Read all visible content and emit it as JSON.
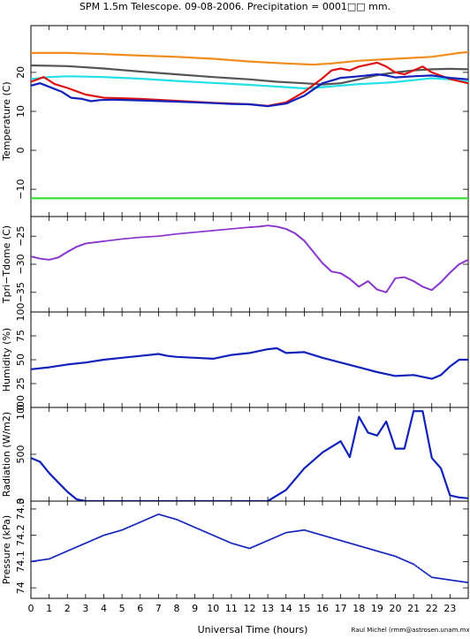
{
  "title": "SPM 1.5m Telescope. 09-08-2006. Precipitation = 0001□□ mm.",
  "credit": "Raul Michel (rmm@astrosen.unam.mx)",
  "xlabel": "Universal Time (hours)",
  "x_ticks": [
    0,
    1,
    2,
    3,
    4,
    5,
    6,
    7,
    8,
    9,
    10,
    11,
    12,
    13,
    14,
    15,
    16,
    17,
    18,
    19,
    20,
    21,
    22,
    23
  ],
  "x_tick_labels": [
    "0",
    "1",
    "2",
    "3",
    "4",
    "5",
    "6",
    "7",
    "8",
    "9",
    "10",
    "11",
    "12",
    "13",
    "14",
    "15",
    "16",
    "17",
    "18",
    "19",
    "20",
    "21",
    "22",
    "23"
  ],
  "colors": {
    "orange": "#f08c1e",
    "gray": "#555555",
    "cyan": "#22e0e8",
    "red": "#dd1111",
    "blue": "#1122bb",
    "green": "#33dd33",
    "purple": "#8833cc"
  },
  "chart_data": [
    {
      "type": "line",
      "ylabel": "Temperature (C)",
      "xlim": [
        0,
        24
      ],
      "ylim": [
        -17,
        32
      ],
      "yticks": [
        -10,
        0,
        10,
        20
      ],
      "ytick_labels": [
        "−10",
        "0",
        "10",
        "20"
      ],
      "series": [
        {
          "color": "#f08c1e",
          "points": [
            [
              0,
              25
            ],
            [
              2,
              25
            ],
            [
              4,
              24.7
            ],
            [
              6,
              24.3
            ],
            [
              8,
              24
            ],
            [
              10,
              23.5
            ],
            [
              12,
              22.8
            ],
            [
              14,
              22.3
            ],
            [
              15.5,
              22
            ],
            [
              16.5,
              22.3
            ],
            [
              18,
              23
            ],
            [
              20,
              23.5
            ],
            [
              22,
              24
            ],
            [
              23.5,
              25
            ],
            [
              24,
              25.2
            ]
          ]
        },
        {
          "color": "#555555",
          "points": [
            [
              0,
              21.8
            ],
            [
              2,
              21.6
            ],
            [
              4,
              21
            ],
            [
              6,
              20.2
            ],
            [
              8,
              19.5
            ],
            [
              10,
              18.8
            ],
            [
              12,
              18.2
            ],
            [
              13.5,
              17.6
            ],
            [
              15,
              17.2
            ],
            [
              16,
              16.9
            ],
            [
              17,
              17.2
            ],
            [
              18,
              18.2
            ],
            [
              19,
              19.3
            ],
            [
              20,
              20
            ],
            [
              21,
              20.5
            ],
            [
              22,
              20.8
            ],
            [
              23,
              20.9
            ],
            [
              24,
              20.8
            ]
          ]
        },
        {
          "color": "#22e0e8",
          "points": [
            [
              0,
              18.3
            ],
            [
              1,
              18.8
            ],
            [
              2,
              19
            ],
            [
              3,
              18.9
            ],
            [
              4,
              18.8
            ],
            [
              6,
              18.4
            ],
            [
              8,
              17.8
            ],
            [
              10,
              17.3
            ],
            [
              12,
              16.8
            ],
            [
              13,
              16.5
            ],
            [
              14,
              16.2
            ],
            [
              15,
              15.9
            ],
            [
              16,
              16.2
            ],
            [
              17,
              16.6
            ],
            [
              18,
              17
            ],
            [
              19,
              17.2
            ],
            [
              20,
              17.5
            ],
            [
              21,
              18
            ],
            [
              22,
              18.5
            ],
            [
              23,
              18.2
            ],
            [
              24,
              17.6
            ]
          ]
        },
        {
          "color": "#dd1111",
          "points": [
            [
              0,
              17.6
            ],
            [
              0.7,
              18.8
            ],
            [
              1.3,
              17
            ],
            [
              2,
              16
            ],
            [
              3,
              14.3
            ],
            [
              4,
              13.5
            ],
            [
              6,
              13.2
            ],
            [
              8,
              12.7
            ],
            [
              10,
              12.2
            ],
            [
              12,
              11.8
            ],
            [
              13,
              11.4
            ],
            [
              14,
              12.3
            ],
            [
              15,
              15
            ],
            [
              16,
              18.5
            ],
            [
              16.5,
              20.5
            ],
            [
              17,
              21
            ],
            [
              17.5,
              20.5
            ],
            [
              18,
              21.5
            ],
            [
              19,
              22.5
            ],
            [
              19.5,
              21.5
            ],
            [
              20,
              20
            ],
            [
              20.5,
              19.5
            ],
            [
              21,
              20.5
            ],
            [
              21.5,
              21.5
            ],
            [
              22,
              20
            ],
            [
              23,
              18.3
            ],
            [
              24,
              17.2
            ]
          ]
        },
        {
          "color": "#1122bb",
          "points": [
            [
              0,
              16.6
            ],
            [
              0.5,
              17.2
            ],
            [
              1,
              16.3
            ],
            [
              1.7,
              15
            ],
            [
              2.2,
              13.5
            ],
            [
              2.8,
              13.2
            ],
            [
              3.3,
              12.6
            ],
            [
              3.8,
              12.9
            ],
            [
              4.5,
              13
            ],
            [
              6,
              12.8
            ],
            [
              8,
              12.5
            ],
            [
              9,
              12.3
            ],
            [
              10,
              12.1
            ],
            [
              11,
              11.9
            ],
            [
              12,
              11.8
            ],
            [
              13,
              11.3
            ],
            [
              14,
              12
            ],
            [
              15,
              14
            ],
            [
              16,
              17.2
            ],
            [
              17,
              18.6
            ],
            [
              18,
              19
            ],
            [
              19,
              19.5
            ],
            [
              19.5,
              19.2
            ],
            [
              20,
              18.7
            ],
            [
              21,
              19
            ],
            [
              22,
              19.2
            ],
            [
              23,
              18.6
            ],
            [
              24,
              18.2
            ]
          ]
        },
        {
          "color": "#33dd33",
          "points": [
            [
              0,
              -12.3
            ],
            [
              24,
              -12.3
            ]
          ]
        }
      ]
    },
    {
      "type": "scatter",
      "ylabel": "Tpri−Tdome (C)",
      "xlim": [
        0,
        24
      ],
      "ylim": [
        -38.5,
        -21.5
      ],
      "yticks": [
        -35,
        -30,
        -25
      ],
      "ytick_labels": [
        "−35",
        "−30",
        "−25"
      ],
      "series": [
        {
          "color": "#8833cc",
          "points": [
            [
              0,
              -28.6
            ],
            [
              0.5,
              -29
            ],
            [
              1,
              -29.2
            ],
            [
              1.5,
              -28.8
            ],
            [
              2,
              -27.8
            ],
            [
              2.5,
              -26.9
            ],
            [
              3,
              -26.3
            ],
            [
              3.5,
              -26.1
            ],
            [
              4,
              -25.9
            ],
            [
              5,
              -25.5
            ],
            [
              6,
              -25.2
            ],
            [
              7,
              -25
            ],
            [
              8,
              -24.6
            ],
            [
              9,
              -24.3
            ],
            [
              10,
              -24
            ],
            [
              11,
              -23.7
            ],
            [
              12,
              -23.4
            ],
            [
              12.5,
              -23.3
            ],
            [
              13,
              -23.1
            ],
            [
              13.5,
              -23.3
            ],
            [
              14,
              -23.7
            ],
            [
              14.5,
              -24.5
            ],
            [
              15,
              -25.8
            ],
            [
              15.5,
              -27.8
            ],
            [
              16,
              -29.8
            ],
            [
              16.5,
              -31.3
            ],
            [
              17,
              -31.6
            ],
            [
              17.5,
              -32.6
            ],
            [
              18,
              -34
            ],
            [
              18.5,
              -33
            ],
            [
              19,
              -34.5
            ],
            [
              19.5,
              -35
            ],
            [
              20,
              -32.5
            ],
            [
              20.5,
              -32.3
            ],
            [
              21,
              -33
            ],
            [
              21.5,
              -34
            ],
            [
              22,
              -34.6
            ],
            [
              22.5,
              -33.2
            ],
            [
              23,
              -31.5
            ],
            [
              23.5,
              -30
            ],
            [
              24,
              -29.2
            ]
          ]
        }
      ]
    },
    {
      "type": "line",
      "ylabel": "Humidity (%)",
      "xlim": [
        0,
        24
      ],
      "ylim": [
        0,
        100
      ],
      "yticks": [
        0,
        25,
        50,
        75,
        100
      ],
      "ytick_labels": [
        "0",
        "25",
        "50",
        "75",
        "100"
      ],
      "series": [
        {
          "color": "#1122bb",
          "points": [
            [
              0,
              40
            ],
            [
              1,
              42
            ],
            [
              2,
              45
            ],
            [
              3,
              47
            ],
            [
              4,
              50
            ],
            [
              5,
              52
            ],
            [
              6,
              54
            ],
            [
              7,
              56
            ],
            [
              7.5,
              54
            ],
            [
              8,
              53
            ],
            [
              9,
              52
            ],
            [
              10,
              51
            ],
            [
              11,
              55
            ],
            [
              12,
              57
            ],
            [
              13,
              61
            ],
            [
              13.5,
              62
            ],
            [
              14,
              57
            ],
            [
              15,
              58
            ],
            [
              16,
              52
            ],
            [
              17,
              47
            ],
            [
              18,
              42
            ],
            [
              19,
              37
            ],
            [
              20,
              33
            ],
            [
              21,
              34
            ],
            [
              22,
              30
            ],
            [
              22.5,
              34
            ],
            [
              23,
              43
            ],
            [
              23.5,
              50
            ],
            [
              24,
              50
            ]
          ]
        }
      ]
    },
    {
      "type": "line",
      "ylabel": "Radiation (W/m2)",
      "xlim": [
        0,
        24
      ],
      "ylim": [
        0,
        1000
      ],
      "yticks": [
        0,
        500,
        1000
      ],
      "ytick_labels": [
        "0",
        "500",
        "1000"
      ],
      "series": [
        {
          "color": "#1122bb",
          "points": [
            [
              0,
              460
            ],
            [
              0.5,
              420
            ],
            [
              1,
              300
            ],
            [
              1.5,
              200
            ],
            [
              2,
              100
            ],
            [
              2.5,
              20
            ],
            [
              3,
              0
            ],
            [
              13,
              0
            ],
            [
              14,
              120
            ],
            [
              15,
              350
            ],
            [
              16,
              520
            ],
            [
              17,
              640
            ],
            [
              17.5,
              470
            ],
            [
              18,
              900
            ],
            [
              18.5,
              730
            ],
            [
              19,
              700
            ],
            [
              19.5,
              850
            ],
            [
              20,
              560
            ],
            [
              20.5,
              560
            ],
            [
              21,
              960
            ],
            [
              21.5,
              960
            ],
            [
              22,
              460
            ],
            [
              22.5,
              350
            ],
            [
              23,
              60
            ],
            [
              23.5,
              40
            ],
            [
              24,
              30
            ]
          ]
        }
      ]
    },
    {
      "type": "scatter",
      "ylabel": "Pressure (kPa)",
      "xlim": [
        0,
        24
      ],
      "ylim": [
        73.96,
        74.33
      ],
      "yticks": [
        74,
        74.1,
        74.2,
        74.3
      ],
      "ytick_labels": [
        "74",
        "74.1",
        "74.2",
        "74.3"
      ],
      "series": [
        {
          "color": "#1122bb",
          "points": [
            [
              0,
              74.1
            ],
            [
              1,
              74.11
            ],
            [
              2,
              74.14
            ],
            [
              3,
              74.17
            ],
            [
              4,
              74.2
            ],
            [
              5,
              74.22
            ],
            [
              6,
              74.25
            ],
            [
              7,
              74.28
            ],
            [
              8,
              74.26
            ],
            [
              9,
              74.23
            ],
            [
              10,
              74.2
            ],
            [
              11,
              74.17
            ],
            [
              12,
              74.15
            ],
            [
              13,
              74.18
            ],
            [
              14,
              74.21
            ],
            [
              15,
              74.22
            ],
            [
              16,
              74.2
            ],
            [
              17,
              74.18
            ],
            [
              18,
              74.16
            ],
            [
              19,
              74.14
            ],
            [
              20,
              74.12
            ],
            [
              21,
              74.09
            ],
            [
              22,
              74.04
            ],
            [
              23,
              74.03
            ],
            [
              24,
              74.02
            ]
          ]
        }
      ]
    }
  ]
}
